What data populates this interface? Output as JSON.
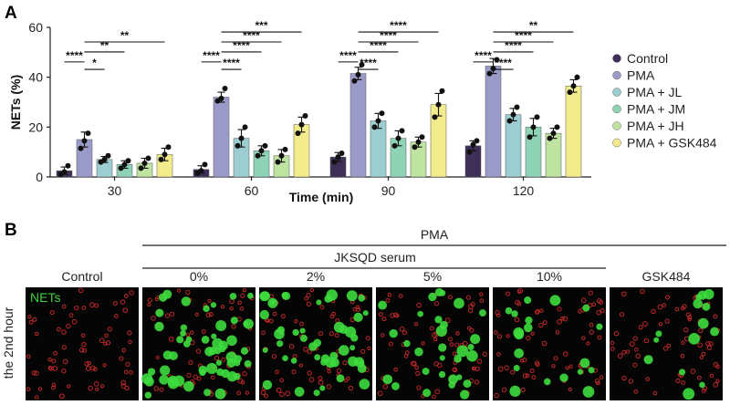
{
  "panel_a_label": "A",
  "panel_b_label": "B",
  "chart_data": {
    "type": "bar",
    "title": "",
    "xlabel": "Time (min)",
    "ylabel": "NETs (%)",
    "ylim": [
      0,
      60
    ],
    "yticks": [
      "0",
      "20",
      "40",
      "60"
    ],
    "categories": [
      "30",
      "60",
      "90",
      "120"
    ],
    "series": [
      {
        "name": "Control",
        "color": "#3d2f57",
        "values": [
          2.5,
          3,
          8,
          12.5
        ],
        "errors": [
          1.5,
          1.5,
          1.8,
          2
        ],
        "points": [
          [
            1,
            2,
            4.5
          ],
          [
            1.5,
            2.5,
            5
          ],
          [
            6,
            8,
            9.5
          ],
          [
            10,
            13,
            14.5
          ]
        ]
      },
      {
        "name": "PMA",
        "color": "#9b9bc9",
        "values": [
          15,
          32,
          41.5,
          44.5
        ],
        "errors": [
          3,
          2,
          2.5,
          3
        ],
        "points": [
          [
            11.5,
            14.5,
            17.5
          ],
          [
            30.5,
            31.5,
            35.5
          ],
          [
            38.5,
            41,
            45
          ],
          [
            41.5,
            43.5,
            47
          ]
        ]
      },
      {
        "name": "PMA + JL",
        "color": "#9ccdd0",
        "values": [
          7,
          15.5,
          22.5,
          25
        ],
        "errors": [
          1.2,
          3.5,
          3,
          2.5
        ],
        "points": [
          [
            6,
            7,
            8.5
          ],
          [
            12.5,
            15.5,
            20
          ],
          [
            20,
            22.5,
            25.5
          ],
          [
            22.5,
            25,
            28
          ]
        ]
      },
      {
        "name": "PMA + JM",
        "color": "#8fd3b6",
        "values": [
          5,
          10.5,
          15.5,
          20
        ],
        "errors": [
          1.5,
          2,
          3,
          3.5
        ],
        "points": [
          [
            3.5,
            5,
            6.5
          ],
          [
            8.5,
            10.5,
            12.5
          ],
          [
            12.5,
            15.5,
            18.5
          ],
          [
            16,
            20,
            24
          ]
        ]
      },
      {
        "name": "PMA + JH",
        "color": "#bfe3a0",
        "values": [
          5.5,
          8.5,
          14,
          17.5
        ],
        "errors": [
          2,
          2.5,
          2,
          2
        ],
        "points": [
          [
            3.5,
            5.5,
            7.5
          ],
          [
            6,
            8.5,
            11
          ],
          [
            12,
            14,
            16
          ],
          [
            15.5,
            17.5,
            20
          ]
        ]
      },
      {
        "name": "PMA + GSK484",
        "color": "#f3ec8c",
        "values": [
          9,
          21,
          29,
          36.5
        ],
        "errors": [
          2.5,
          3,
          4.5,
          2.5
        ],
        "points": [
          [
            7,
            9,
            12
          ],
          [
            17.5,
            21,
            24.5
          ],
          [
            24,
            29,
            34.5
          ],
          [
            34,
            36.5,
            40
          ]
        ]
      }
    ],
    "legend_position": "right",
    "significance": [
      {
        "category": "30",
        "label": "****",
        "from": 0,
        "to": 1,
        "y": 52
      },
      {
        "category": "30",
        "label": "*",
        "from": 1,
        "to": 2,
        "y": 49
      },
      {
        "category": "30",
        "label": "**",
        "from": 1,
        "to": 3,
        "y": 56
      },
      {
        "category": "30",
        "label": "**",
        "from": 1,
        "to": 5,
        "y": 60
      },
      {
        "category": "60",
        "label": "****",
        "from": 0,
        "to": 1,
        "y": 52
      },
      {
        "category": "60",
        "label": "****",
        "from": 1,
        "to": 2,
        "y": 49
      },
      {
        "category": "60",
        "label": "****",
        "from": 1,
        "to": 3,
        "y": 56
      },
      {
        "category": "60",
        "label": "****",
        "from": 1,
        "to": 4,
        "y": 60
      },
      {
        "category": "60",
        "label": "***",
        "from": 1,
        "to": 5,
        "y": 64
      },
      {
        "category": "90",
        "label": "****",
        "from": 0,
        "to": 1,
        "y": 52
      },
      {
        "category": "90",
        "label": "****",
        "from": 1,
        "to": 2,
        "y": 49
      },
      {
        "category": "90",
        "label": "****",
        "from": 1,
        "to": 3,
        "y": 56
      },
      {
        "category": "90",
        "label": "****",
        "from": 1,
        "to": 4,
        "y": 60
      },
      {
        "category": "90",
        "label": "****",
        "from": 1,
        "to": 5,
        "y": 64
      },
      {
        "category": "120",
        "label": "****",
        "from": 0,
        "to": 1,
        "y": 52
      },
      {
        "category": "120",
        "label": "****",
        "from": 1,
        "to": 2,
        "y": 49
      },
      {
        "category": "120",
        "label": "****",
        "from": 1,
        "to": 3,
        "y": 56
      },
      {
        "category": "120",
        "label": "****",
        "from": 1,
        "to": 4,
        "y": 60
      },
      {
        "category": "120",
        "label": "**",
        "from": 1,
        "to": 5,
        "y": 64
      }
    ]
  },
  "panel_b": {
    "pma_label": "PMA",
    "serum_label": "JKSQD serum",
    "row_label": "the 2nd hour",
    "nets_label": "NETs",
    "columns": [
      "Control",
      "0%",
      "2%",
      "5%",
      "10%",
      "GSK484"
    ],
    "green_density": [
      0,
      1.0,
      0.85,
      0.55,
      0.35,
      0.25
    ],
    "green_color": "#3ddc3d",
    "red_color": "#c02828"
  }
}
